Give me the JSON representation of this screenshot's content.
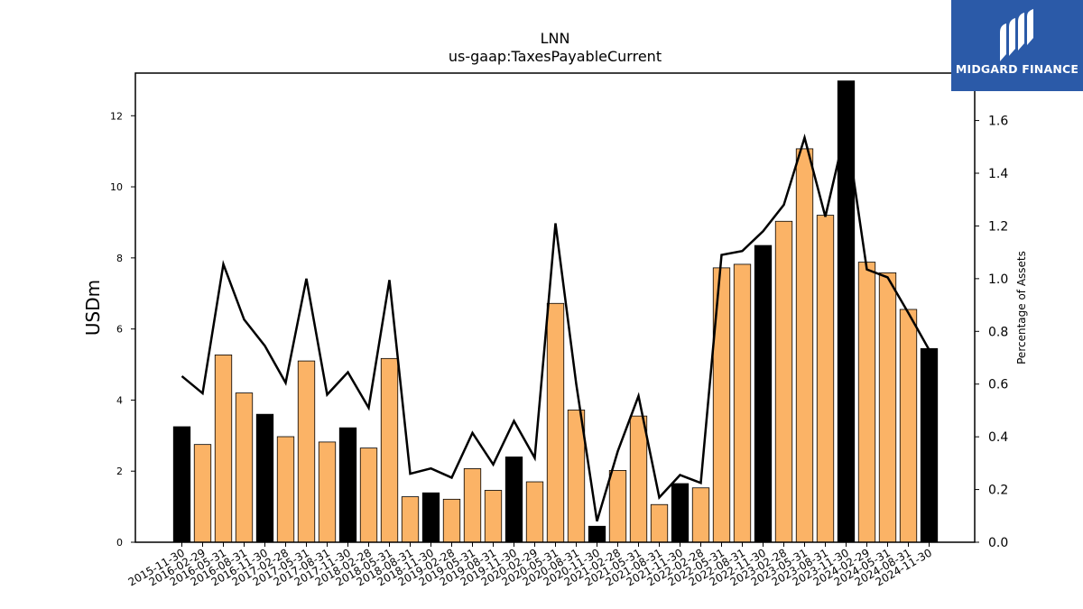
{
  "chart_data": {
    "type": "bar",
    "title": "LNN",
    "subtitle": "us-gaap:TaxesPayableCurrent",
    "ylabel": "USDm",
    "y2label": "Percentage of Assets",
    "ylim": [
      0,
      13.2
    ],
    "y2lim": [
      0,
      1.78
    ],
    "yticks": [
      0,
      2,
      4,
      6,
      8,
      10,
      12
    ],
    "y2ticks": [
      0.0,
      0.2,
      0.4,
      0.6,
      0.8,
      1.0,
      1.2,
      1.4,
      1.6
    ],
    "categories": [
      "2015-11-30",
      "2016-02-29",
      "2016-05-31",
      "2016-08-31",
      "2016-11-30",
      "2017-02-28",
      "2017-05-31",
      "2017-08-31",
      "2017-11-30",
      "2018-02-28",
      "2018-05-31",
      "2018-08-31",
      "2018-11-30",
      "2019-02-28",
      "2019-05-31",
      "2019-08-31",
      "2019-11-30",
      "2020-02-29",
      "2020-05-31",
      "2020-08-31",
      "2020-11-30",
      "2021-02-28",
      "2021-05-31",
      "2021-08-31",
      "2021-11-30",
      "2022-02-28",
      "2022-05-31",
      "2022-08-31",
      "2022-11-30",
      "2023-02-28",
      "2023-05-31",
      "2023-08-31",
      "2023-11-30",
      "2024-02-29",
      "2024-05-31",
      "2024-08-31",
      "2024-11-30"
    ],
    "series": [
      {
        "type": "bar",
        "values": [
          3.25,
          2.75,
          5.27,
          4.2,
          3.6,
          2.97,
          5.1,
          2.82,
          3.22,
          2.65,
          5.17,
          1.28,
          1.39,
          1.21,
          2.07,
          1.46,
          2.4,
          1.7,
          6.72,
          3.72,
          0.45,
          2.02,
          3.55,
          1.06,
          1.65,
          1.53,
          7.72,
          7.82,
          8.35,
          9.03,
          11.07,
          9.2,
          12.98,
          7.88,
          7.58,
          6.55,
          5.45
        ],
        "colors": [
          "#000000",
          "#fbb366",
          "#fbb366",
          "#fbb366",
          "#000000",
          "#fbb366",
          "#fbb366",
          "#fbb366",
          "#000000",
          "#fbb366",
          "#fbb366",
          "#fbb366",
          "#000000",
          "#fbb366",
          "#fbb366",
          "#fbb366",
          "#000000",
          "#fbb366",
          "#fbb366",
          "#fbb366",
          "#000000",
          "#fbb366",
          "#fbb366",
          "#fbb366",
          "#000000",
          "#fbb366",
          "#fbb366",
          "#fbb366",
          "#000000",
          "#fbb366",
          "#fbb366",
          "#fbb366",
          "#000000",
          "#fbb366",
          "#fbb366",
          "#fbb366",
          "#000000"
        ]
      },
      {
        "type": "line",
        "axis": "right",
        "color": "#000000",
        "values": [
          0.63,
          0.565,
          1.055,
          0.845,
          0.745,
          0.605,
          1.0,
          0.56,
          0.645,
          0.51,
          0.995,
          0.26,
          0.28,
          0.245,
          0.415,
          0.295,
          0.46,
          0.32,
          1.21,
          0.6,
          0.08,
          0.345,
          0.555,
          0.17,
          0.255,
          0.225,
          1.09,
          1.105,
          1.18,
          1.28,
          1.535,
          1.235,
          1.575,
          1.035,
          1.005,
          0.87,
          0.73
        ]
      }
    ],
    "grid": false
  },
  "logo": {
    "text": "MIDGARD FINANCE",
    "bg_color": "#2b5aa8"
  }
}
